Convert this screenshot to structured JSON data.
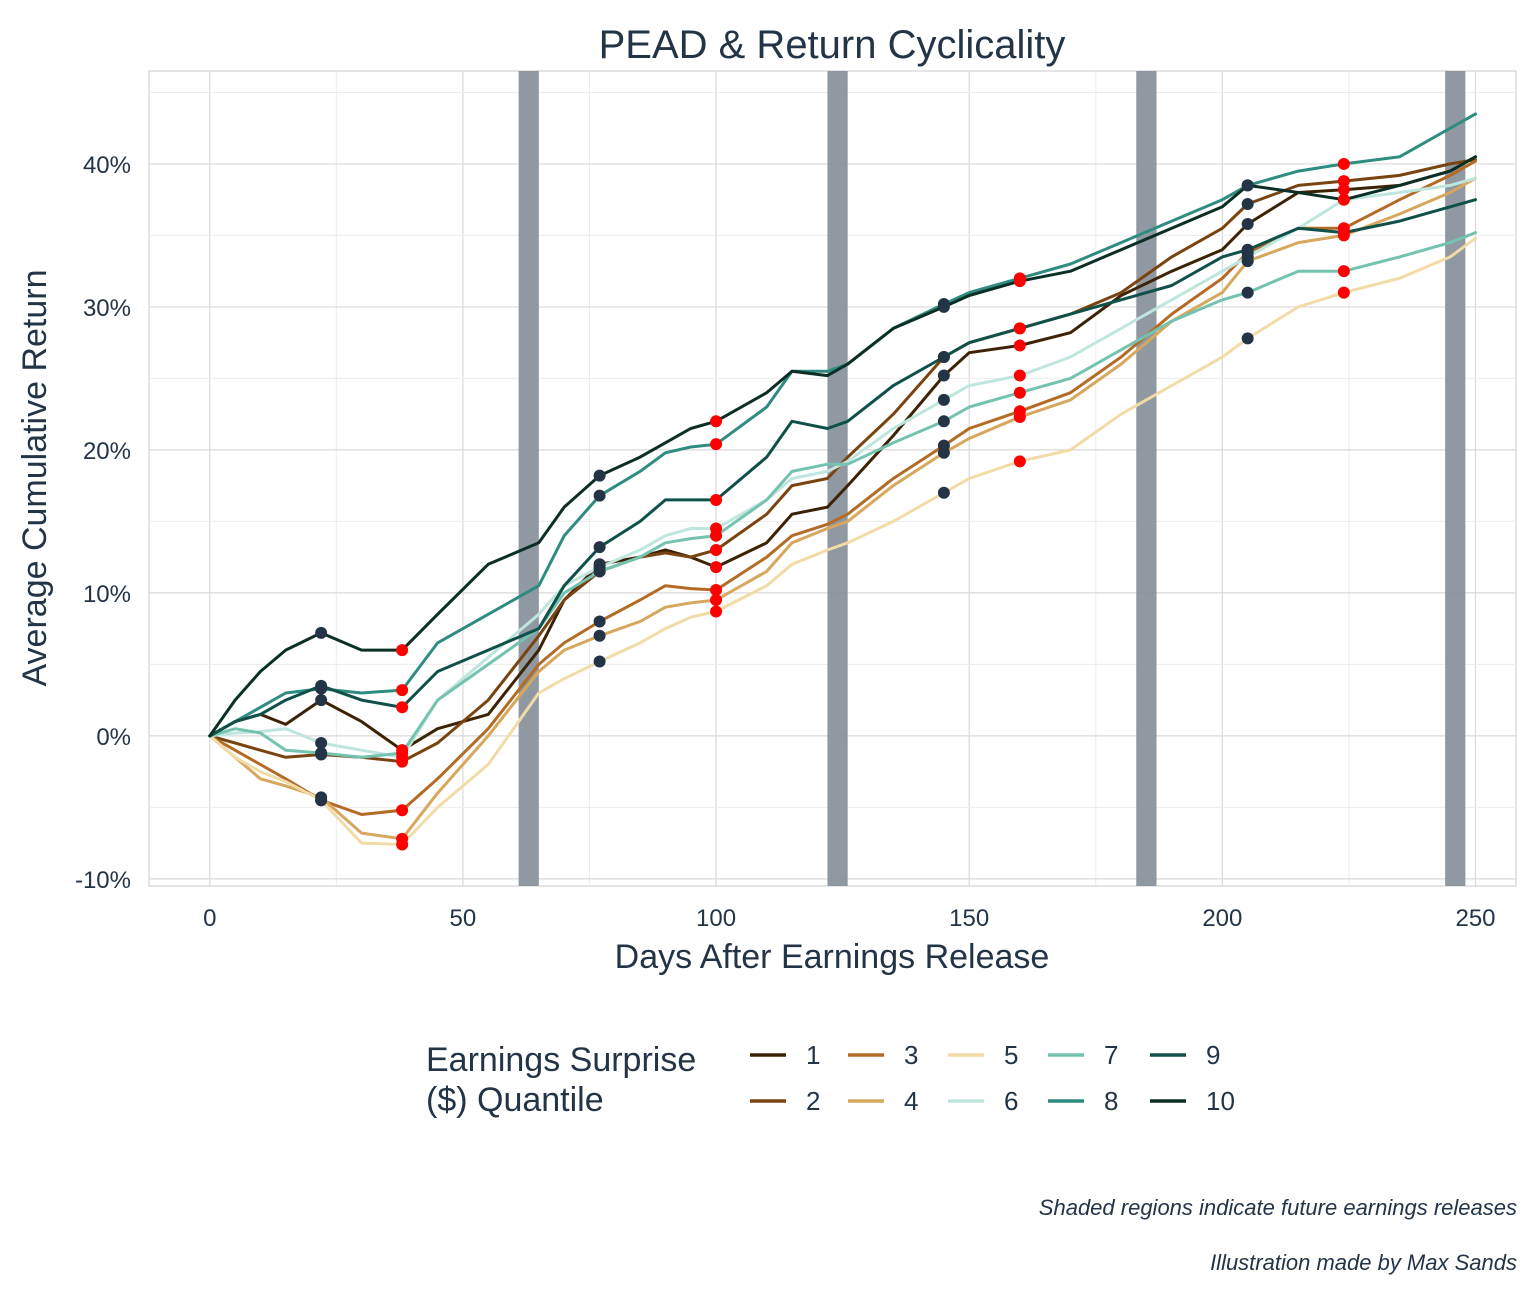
{
  "chart_data": {
    "type": "line",
    "title": "PEAD & Return Cyclicality",
    "xlabel": "Days After Earnings Release",
    "ylabel": "Average Cumulative Return",
    "xlim": [
      -12,
      258
    ],
    "ylim": [
      -10.5,
      46.5
    ],
    "x_ticks": [
      0,
      50,
      100,
      150,
      200,
      250
    ],
    "x_tick_labels": [
      "0",
      "50",
      "100",
      "150",
      "200",
      "250"
    ],
    "y_ticks": [
      -10,
      0,
      10,
      20,
      30,
      40
    ],
    "y_tick_labels": [
      "-10%",
      "0%",
      "10%",
      "20%",
      "30%",
      "40%"
    ],
    "grid": true,
    "legend": {
      "title_lines": [
        "Earnings Surprise",
        "($) Quantile"
      ],
      "placement": "bottom"
    },
    "shaded_regions": [
      [
        61,
        65
      ],
      [
        122,
        126
      ],
      [
        183,
        187
      ],
      [
        244,
        248
      ]
    ],
    "shaded_color": "#8a929c",
    "low_marker_color": "#243447",
    "high_marker_color": "#ff0000",
    "low_marker_days": [
      22,
      77,
      145,
      205
    ],
    "high_marker_days": [
      38,
      100,
      160,
      224
    ],
    "series": [
      {
        "name": "1",
        "color": "#3d2306",
        "x": [
          0,
          5,
          10,
          15,
          22,
          30,
          38,
          45,
          55,
          65,
          70,
          77,
          85,
          90,
          95,
          100,
          110,
          115,
          122,
          126,
          135,
          145,
          150,
          160,
          170,
          180,
          190,
          200,
          205,
          215,
          224,
          235,
          245,
          250
        ],
        "y": [
          0,
          1.0,
          1.5,
          0.8,
          2.5,
          1.0,
          -1.0,
          0.5,
          1.5,
          6.0,
          9.5,
          12.0,
          12.5,
          13.0,
          12.5,
          11.8,
          13.5,
          15.5,
          16.0,
          17.5,
          21.0,
          25.2,
          26.8,
          27.3,
          28.2,
          30.8,
          32.5,
          34.0,
          35.8,
          38.0,
          38.2,
          38.5,
          39.5,
          40.5
        ]
      },
      {
        "name": "2",
        "color": "#7a4410",
        "x": [
          0,
          5,
          10,
          15,
          22,
          30,
          38,
          45,
          55,
          65,
          70,
          77,
          85,
          90,
          95,
          100,
          110,
          115,
          122,
          126,
          135,
          145,
          150,
          160,
          170,
          180,
          190,
          200,
          205,
          215,
          224,
          235,
          245,
          250
        ],
        "y": [
          0,
          -0.5,
          -1.0,
          -1.5,
          -1.3,
          -1.5,
          -1.8,
          -0.5,
          2.5,
          7.0,
          9.5,
          11.5,
          12.5,
          12.8,
          12.5,
          13.0,
          15.5,
          17.5,
          18.0,
          19.5,
          22.5,
          26.5,
          27.5,
          28.5,
          29.5,
          31.0,
          33.5,
          35.5,
          37.2,
          38.5,
          38.8,
          39.2,
          40.0,
          40.3
        ]
      },
      {
        "name": "3",
        "color": "#b36b25",
        "x": [
          0,
          5,
          10,
          15,
          22,
          30,
          38,
          45,
          55,
          65,
          70,
          77,
          85,
          90,
          95,
          100,
          110,
          115,
          122,
          126,
          135,
          145,
          150,
          160,
          170,
          180,
          190,
          200,
          205,
          215,
          224,
          235,
          245,
          250
        ],
        "y": [
          0,
          -1.0,
          -2.0,
          -3.0,
          -4.5,
          -5.5,
          -5.2,
          -3.0,
          0.5,
          5.0,
          6.5,
          8.0,
          9.5,
          10.5,
          10.3,
          10.2,
          12.5,
          14.0,
          14.8,
          15.5,
          18.0,
          20.3,
          21.5,
          22.7,
          24.0,
          26.5,
          29.5,
          32.0,
          33.8,
          35.5,
          35.5,
          37.5,
          39.2,
          40.2
        ]
      },
      {
        "name": "4",
        "color": "#d6a75c",
        "x": [
          0,
          5,
          10,
          15,
          22,
          30,
          38,
          45,
          55,
          65,
          70,
          77,
          85,
          90,
          95,
          100,
          110,
          115,
          122,
          126,
          135,
          145,
          150,
          160,
          170,
          180,
          190,
          200,
          205,
          215,
          224,
          235,
          245,
          250
        ],
        "y": [
          0,
          -1.5,
          -3.0,
          -3.5,
          -4.3,
          -6.8,
          -7.2,
          -4.0,
          0.0,
          4.5,
          6.0,
          7.0,
          8.0,
          9.0,
          9.3,
          9.5,
          11.5,
          13.5,
          14.5,
          15.0,
          17.5,
          19.8,
          20.8,
          22.3,
          23.5,
          26.0,
          29.0,
          31.0,
          33.2,
          34.5,
          35.0,
          36.5,
          38.0,
          39.0
        ]
      },
      {
        "name": "5",
        "color": "#f1dca7",
        "x": [
          0,
          5,
          10,
          15,
          22,
          30,
          38,
          45,
          55,
          65,
          70,
          77,
          85,
          90,
          95,
          100,
          110,
          115,
          122,
          126,
          135,
          145,
          150,
          160,
          170,
          180,
          190,
          200,
          205,
          215,
          224,
          235,
          245,
          250
        ],
        "y": [
          0,
          -1.5,
          -2.5,
          -3.2,
          -4.5,
          -7.5,
          -7.6,
          -5.0,
          -2.0,
          3.0,
          4.0,
          5.2,
          6.5,
          7.5,
          8.3,
          8.7,
          10.5,
          12.0,
          13.0,
          13.5,
          15.0,
          17.0,
          18.0,
          19.2,
          20.0,
          22.5,
          24.5,
          26.5,
          27.8,
          30.0,
          31.0,
          32.0,
          33.5,
          34.8
        ]
      },
      {
        "name": "6",
        "color": "#bfe6de",
        "x": [
          0,
          5,
          10,
          15,
          22,
          30,
          38,
          45,
          55,
          65,
          70,
          77,
          85,
          90,
          95,
          100,
          110,
          115,
          122,
          126,
          135,
          145,
          150,
          160,
          170,
          180,
          190,
          200,
          205,
          215,
          224,
          235,
          245,
          250
        ],
        "y": [
          0,
          0.2,
          0.3,
          0.5,
          -0.5,
          -1.0,
          -1.5,
          2.5,
          5.5,
          8.5,
          10.5,
          11.8,
          13.0,
          14.0,
          14.5,
          14.5,
          16.5,
          18.0,
          18.5,
          19.2,
          21.5,
          23.5,
          24.5,
          25.2,
          26.5,
          28.5,
          30.5,
          32.5,
          33.5,
          35.5,
          37.5,
          38.0,
          38.5,
          39.0
        ]
      },
      {
        "name": "7",
        "color": "#74c2b0",
        "x": [
          0,
          5,
          10,
          15,
          22,
          30,
          38,
          45,
          55,
          65,
          70,
          77,
          85,
          90,
          95,
          100,
          110,
          115,
          122,
          126,
          135,
          145,
          150,
          160,
          170,
          180,
          190,
          200,
          205,
          215,
          224,
          235,
          245,
          250
        ],
        "y": [
          0,
          0.5,
          0.2,
          -1.0,
          -1.2,
          -1.5,
          -1.2,
          2.5,
          5.0,
          7.5,
          10.0,
          11.5,
          12.5,
          13.5,
          13.8,
          14.0,
          16.5,
          18.5,
          19.0,
          19.0,
          20.5,
          22.0,
          23.0,
          24.0,
          25.0,
          27.0,
          29.0,
          30.5,
          31.0,
          32.5,
          32.5,
          33.5,
          34.5,
          35.2
        ]
      },
      {
        "name": "8",
        "color": "#2e8c80",
        "x": [
          0,
          5,
          10,
          15,
          22,
          30,
          38,
          45,
          55,
          65,
          70,
          77,
          85,
          90,
          95,
          100,
          110,
          115,
          122,
          126,
          135,
          145,
          150,
          160,
          170,
          180,
          190,
          200,
          205,
          215,
          224,
          235,
          245,
          250
        ],
        "y": [
          0,
          1.0,
          2.0,
          3.0,
          3.3,
          3.0,
          3.2,
          6.5,
          8.5,
          10.5,
          14.0,
          16.8,
          18.5,
          19.8,
          20.2,
          20.4,
          23.0,
          25.5,
          25.5,
          26.0,
          28.5,
          30.2,
          31.0,
          32.0,
          33.0,
          34.5,
          36.0,
          37.5,
          38.5,
          39.5,
          40.0,
          40.5,
          42.5,
          43.5
        ]
      },
      {
        "name": "9",
        "color": "#0f5149",
        "x": [
          0,
          5,
          10,
          15,
          22,
          30,
          38,
          45,
          55,
          65,
          70,
          77,
          85,
          90,
          95,
          100,
          110,
          115,
          122,
          126,
          135,
          145,
          150,
          160,
          170,
          180,
          190,
          200,
          205,
          215,
          224,
          235,
          245,
          250
        ],
        "y": [
          0,
          1.0,
          1.5,
          2.5,
          3.5,
          2.5,
          2.0,
          4.5,
          6.0,
          7.5,
          10.5,
          13.2,
          15.0,
          16.5,
          16.5,
          16.5,
          19.5,
          22.0,
          21.5,
          22.0,
          24.5,
          26.5,
          27.5,
          28.5,
          29.5,
          30.5,
          31.5,
          33.5,
          34.0,
          35.5,
          35.2,
          36.0,
          37.0,
          37.5
        ]
      },
      {
        "name": "10",
        "color": "#0b2f24",
        "x": [
          0,
          5,
          10,
          15,
          22,
          30,
          38,
          45,
          55,
          65,
          70,
          77,
          85,
          90,
          95,
          100,
          110,
          115,
          122,
          126,
          135,
          145,
          150,
          160,
          170,
          180,
          190,
          200,
          205,
          215,
          224,
          235,
          245,
          250
        ],
        "y": [
          0,
          2.5,
          4.5,
          6.0,
          7.2,
          6.0,
          6.0,
          8.5,
          12.0,
          13.5,
          16.0,
          18.2,
          19.5,
          20.5,
          21.5,
          22.0,
          24.0,
          25.5,
          25.2,
          26.0,
          28.5,
          30.0,
          30.8,
          31.8,
          32.5,
          34.0,
          35.5,
          37.0,
          38.5,
          38.0,
          37.5,
          38.5,
          39.5,
          40.5
        ]
      }
    ]
  },
  "captions": {
    "line1": "Shaded regions indicate future earnings releases",
    "line2": "Illustration made by Max Sands"
  }
}
